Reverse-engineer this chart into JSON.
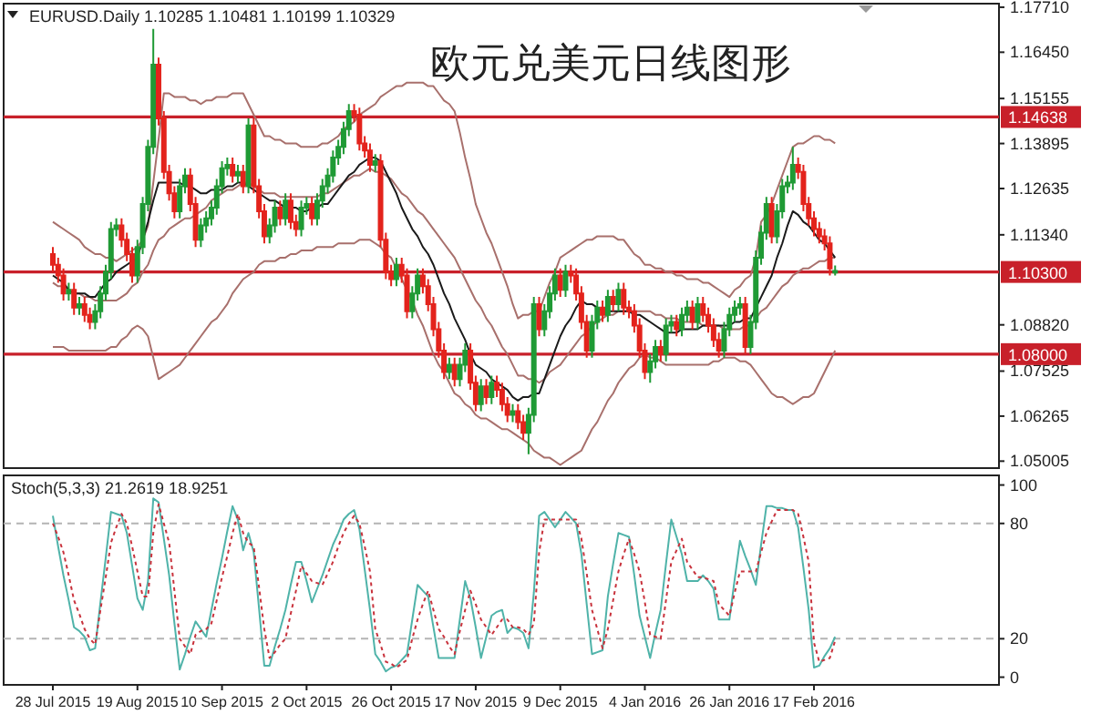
{
  "chart_data": [
    {
      "type": "candlestick",
      "title": "欧元兑美元日线图形",
      "annotations": [
        "EURUSD.Daily 1.10285 1.10481 1.10199 1.10329"
      ],
      "tick_labels": "y",
      "ylim": [
        1.0481,
        1.1781
      ],
      "categories": [
        null,
        null,
        null,
        null,
        null,
        null,
        null,
        null,
        null,
        null,
        null,
        null,
        null,
        null,
        null,
        null,
        null,
        null,
        null,
        null,
        null,
        null,
        null,
        null,
        null,
        null,
        null,
        null,
        null,
        null,
        null,
        null,
        null,
        null,
        null,
        null,
        null,
        null,
        null,
        null,
        null,
        null,
        null,
        null,
        null,
        null,
        null,
        null,
        null,
        null,
        null,
        null,
        null,
        null,
        null,
        null,
        null,
        null,
        null,
        null,
        null,
        null,
        null,
        null,
        null,
        null,
        null,
        null,
        null,
        null,
        null,
        null,
        null,
        null,
        null,
        null,
        null,
        null,
        null,
        null,
        null,
        null,
        null,
        null,
        null,
        null,
        null,
        null,
        null,
        null,
        null,
        null,
        null,
        null,
        null,
        null,
        null,
        null,
        null,
        null,
        null,
        null,
        null,
        null,
        null,
        null,
        null,
        null,
        null,
        null,
        null,
        null,
        null,
        null,
        null,
        null,
        null,
        null,
        null,
        null,
        null,
        null,
        null,
        null,
        null,
        null,
        null,
        null,
        null,
        null,
        null,
        null,
        null,
        null,
        null,
        null,
        null,
        null,
        null,
        null,
        null,
        null,
        null,
        null,
        null,
        null,
        null,
        null,
        null
      ],
      "yticks": [
        {
          "value": 1.1771,
          "label": "1.17710"
        },
        {
          "value": 1.1645,
          "label": "1.16450"
        },
        {
          "value": 1.15155,
          "label": "1.15155"
        },
        {
          "value": 1.13895,
          "label": "1.13895"
        },
        {
          "value": 1.12635,
          "label": "1.12635"
        },
        {
          "value": 1.1134,
          "label": "1.11340"
        },
        {
          "value": 1.0882,
          "label": "1.08820"
        },
        {
          "value": 1.07525,
          "label": "1.07525"
        },
        {
          "value": 1.06265,
          "label": "1.06265"
        },
        {
          "value": 1.05005,
          "label": "1.05005"
        }
      ],
      "ref_lines": [
        {
          "axis": "y",
          "value": 1.14638,
          "label": "1.14638",
          "color": "#c8202a"
        },
        {
          "axis": "y",
          "value": 1.103,
          "label": "1.10300",
          "color": "#c8202a"
        },
        {
          "axis": "y",
          "value": 1.08,
          "label": "1.08000",
          "color": "#c8202a"
        }
      ],
      "ohlc": [
        [
          1.108,
          1.11,
          1.103,
          1.105
        ],
        [
          1.105,
          1.107,
          1.1,
          1.102
        ],
        [
          1.102,
          1.104,
          1.095,
          1.097
        ],
        [
          1.097,
          1.1,
          1.095,
          1.098
        ],
        [
          1.098,
          1.1,
          1.091,
          1.093
        ],
        [
          1.093,
          1.096,
          1.091,
          1.094
        ],
        [
          1.094,
          1.096,
          1.089,
          1.091
        ],
        [
          1.091,
          1.093,
          1.087,
          1.089
        ],
        [
          1.089,
          1.094,
          1.087,
          1.092
        ],
        [
          1.092,
          1.099,
          1.09,
          1.097
        ],
        [
          1.097,
          1.105,
          1.095,
          1.103
        ],
        [
          1.103,
          1.117,
          1.101,
          1.115
        ],
        [
          1.115,
          1.118,
          1.113,
          1.116
        ],
        [
          1.116,
          1.118,
          1.11,
          1.112
        ],
        [
          1.112,
          1.114,
          1.106,
          1.108
        ],
        [
          1.108,
          1.11,
          1.1,
          1.102
        ],
        [
          1.102,
          1.112,
          1.1,
          1.11
        ],
        [
          1.11,
          1.124,
          1.108,
          1.122
        ],
        [
          1.122,
          1.14,
          1.12,
          1.138
        ],
        [
          1.138,
          1.171,
          1.136,
          1.161
        ],
        [
          1.161,
          1.163,
          1.144,
          1.146
        ],
        [
          1.146,
          1.148,
          1.129,
          1.131
        ],
        [
          1.131,
          1.133,
          1.123,
          1.125
        ],
        [
          1.125,
          1.127,
          1.118,
          1.12
        ],
        [
          1.12,
          1.129,
          1.118,
          1.127
        ],
        [
          1.127,
          1.132,
          1.125,
          1.13
        ],
        [
          1.13,
          1.132,
          1.12,
          1.122
        ],
        [
          1.122,
          1.124,
          1.11,
          1.112
        ],
        [
          1.112,
          1.118,
          1.11,
          1.116
        ],
        [
          1.116,
          1.12,
          1.114,
          1.118
        ],
        [
          1.118,
          1.123,
          1.116,
          1.121
        ],
        [
          1.121,
          1.129,
          1.119,
          1.127
        ],
        [
          1.127,
          1.134,
          1.125,
          1.132
        ],
        [
          1.132,
          1.135,
          1.13,
          1.133
        ],
        [
          1.133,
          1.135,
          1.128,
          1.13
        ],
        [
          1.13,
          1.133,
          1.128,
          1.131
        ],
        [
          1.131,
          1.133,
          1.125,
          1.127
        ],
        [
          1.127,
          1.146,
          1.125,
          1.144
        ],
        [
          1.144,
          1.146,
          1.125,
          1.127
        ],
        [
          1.127,
          1.129,
          1.118,
          1.12
        ],
        [
          1.12,
          1.122,
          1.111,
          1.113
        ],
        [
          1.113,
          1.118,
          1.111,
          1.116
        ],
        [
          1.116,
          1.123,
          1.114,
          1.121
        ],
        [
          1.121,
          1.123,
          1.116,
          1.118
        ],
        [
          1.118,
          1.125,
          1.116,
          1.123
        ],
        [
          1.123,
          1.125,
          1.115,
          1.117
        ],
        [
          1.117,
          1.119,
          1.113,
          1.115
        ],
        [
          1.115,
          1.123,
          1.113,
          1.121
        ],
        [
          1.121,
          1.124,
          1.119,
          1.122
        ],
        [
          1.122,
          1.124,
          1.116,
          1.118
        ],
        [
          1.118,
          1.125,
          1.116,
          1.123
        ],
        [
          1.123,
          1.129,
          1.121,
          1.127
        ],
        [
          1.127,
          1.132,
          1.125,
          1.13
        ],
        [
          1.13,
          1.137,
          1.128,
          1.135
        ],
        [
          1.135,
          1.14,
          1.133,
          1.138
        ],
        [
          1.138,
          1.145,
          1.136,
          1.143
        ],
        [
          1.143,
          1.15,
          1.141,
          1.148
        ],
        [
          1.148,
          1.15,
          1.145,
          1.147
        ],
        [
          1.147,
          1.149,
          1.137,
          1.139
        ],
        [
          1.139,
          1.141,
          1.135,
          1.137
        ],
        [
          1.137,
          1.139,
          1.131,
          1.133
        ],
        [
          1.133,
          1.136,
          1.131,
          1.134
        ],
        [
          1.134,
          1.136,
          1.11,
          1.112
        ],
        [
          1.112,
          1.114,
          1.101,
          1.103
        ],
        [
          1.103,
          1.105,
          1.099,
          1.101
        ],
        [
          1.101,
          1.107,
          1.099,
          1.105
        ],
        [
          1.105,
          1.107,
          1.1,
          1.102
        ],
        [
          1.102,
          1.104,
          1.09,
          1.092
        ],
        [
          1.092,
          1.099,
          1.09,
          1.097
        ],
        [
          1.097,
          1.104,
          1.095,
          1.102
        ],
        [
          1.102,
          1.104,
          1.097,
          1.099
        ],
        [
          1.099,
          1.101,
          1.092,
          1.094
        ],
        [
          1.094,
          1.096,
          1.085,
          1.087
        ],
        [
          1.087,
          1.089,
          1.079,
          1.081
        ],
        [
          1.081,
          1.083,
          1.073,
          1.075
        ],
        [
          1.075,
          1.079,
          1.073,
          1.077
        ],
        [
          1.077,
          1.079,
          1.071,
          1.073
        ],
        [
          1.073,
          1.079,
          1.071,
          1.077
        ],
        [
          1.077,
          1.083,
          1.075,
          1.081
        ],
        [
          1.081,
          1.083,
          1.07,
          1.072
        ],
        [
          1.072,
          1.074,
          1.064,
          1.066
        ],
        [
          1.066,
          1.073,
          1.064,
          1.071
        ],
        [
          1.071,
          1.073,
          1.066,
          1.068
        ],
        [
          1.068,
          1.074,
          1.066,
          1.072
        ],
        [
          1.072,
          1.074,
          1.068,
          1.07
        ],
        [
          1.07,
          1.072,
          1.064,
          1.066
        ],
        [
          1.066,
          1.068,
          1.061,
          1.063
        ],
        [
          1.063,
          1.066,
          1.061,
          1.064
        ],
        [
          1.064,
          1.066,
          1.059,
          1.061
        ],
        [
          1.061,
          1.063,
          1.056,
          1.058
        ],
        [
          1.058,
          1.065,
          1.052,
          1.063
        ],
        [
          1.063,
          1.096,
          1.061,
          1.094
        ],
        [
          1.094,
          1.096,
          1.085,
          1.087
        ],
        [
          1.087,
          1.094,
          1.085,
          1.092
        ],
        [
          1.092,
          1.099,
          1.09,
          1.097
        ],
        [
          1.097,
          1.104,
          1.095,
          1.102
        ],
        [
          1.102,
          1.104,
          1.096,
          1.098
        ],
        [
          1.098,
          1.105,
          1.096,
          1.103
        ],
        [
          1.103,
          1.105,
          1.1,
          1.102
        ],
        [
          1.102,
          1.104,
          1.095,
          1.097
        ],
        [
          1.097,
          1.099,
          1.087,
          1.089
        ],
        [
          1.089,
          1.091,
          1.079,
          1.081
        ],
        [
          1.081,
          1.091,
          1.079,
          1.089
        ],
        [
          1.089,
          1.095,
          1.087,
          1.093
        ],
        [
          1.093,
          1.095,
          1.089,
          1.091
        ],
        [
          1.091,
          1.098,
          1.089,
          1.096
        ],
        [
          1.096,
          1.098,
          1.092,
          1.094
        ],
        [
          1.094,
          1.1,
          1.092,
          1.098
        ],
        [
          1.098,
          1.1,
          1.091,
          1.093
        ],
        [
          1.093,
          1.095,
          1.09,
          1.092
        ],
        [
          1.092,
          1.094,
          1.086,
          1.088
        ],
        [
          1.088,
          1.09,
          1.079,
          1.081
        ],
        [
          1.081,
          1.083,
          1.073,
          1.075
        ],
        [
          1.075,
          1.08,
          1.072,
          1.078
        ],
        [
          1.078,
          1.084,
          1.076,
          1.082
        ],
        [
          1.082,
          1.084,
          1.078,
          1.08
        ],
        [
          1.08,
          1.09,
          1.078,
          1.088
        ],
        [
          1.088,
          1.091,
          1.086,
          1.089
        ],
        [
          1.089,
          1.091,
          1.085,
          1.087
        ],
        [
          1.087,
          1.093,
          1.085,
          1.091
        ],
        [
          1.091,
          1.095,
          1.089,
          1.093
        ],
        [
          1.093,
          1.095,
          1.087,
          1.089
        ],
        [
          1.089,
          1.096,
          1.087,
          1.094
        ],
        [
          1.094,
          1.096,
          1.089,
          1.091
        ],
        [
          1.091,
          1.093,
          1.086,
          1.088
        ],
        [
          1.088,
          1.09,
          1.082,
          1.084
        ],
        [
          1.084,
          1.086,
          1.079,
          1.081
        ],
        [
          1.081,
          1.089,
          1.079,
          1.087
        ],
        [
          1.087,
          1.093,
          1.085,
          1.091
        ],
        [
          1.091,
          1.095,
          1.089,
          1.093
        ],
        [
          1.093,
          1.096,
          1.091,
          1.094
        ],
        [
          1.094,
          1.096,
          1.08,
          1.082
        ],
        [
          1.082,
          1.091,
          1.08,
          1.089
        ],
        [
          1.089,
          1.109,
          1.087,
          1.107
        ],
        [
          1.107,
          1.116,
          1.105,
          1.114
        ],
        [
          1.114,
          1.124,
          1.112,
          1.122
        ],
        [
          1.122,
          1.124,
          1.111,
          1.113
        ],
        [
          1.113,
          1.122,
          1.111,
          1.12
        ],
        [
          1.12,
          1.129,
          1.118,
          1.127
        ],
        [
          1.127,
          1.13,
          1.125,
          1.128
        ],
        [
          1.128,
          1.138,
          1.126,
          1.133
        ],
        [
          1.133,
          1.135,
          1.129,
          1.131
        ],
        [
          1.131,
          1.133,
          1.12,
          1.122
        ],
        [
          1.122,
          1.124,
          1.116,
          1.118
        ],
        [
          1.118,
          1.12,
          1.113,
          1.115
        ],
        [
          1.115,
          1.117,
          1.111,
          1.113
        ],
        [
          1.113,
          1.115,
          1.109,
          1.111
        ],
        [
          1.111,
          1.113,
          1.102,
          1.104
        ],
        [
          1.10285,
          1.10481,
          1.10199,
          1.10329
        ]
      ],
      "series": [
        {
          "type": "line",
          "color": "#a8706c",
          "values": [
            1.117,
            1.116,
            1.115,
            1.114,
            1.113,
            1.112,
            1.11,
            1.109,
            1.108,
            1.108,
            1.107,
            1.107,
            1.106,
            1.107,
            1.108,
            1.109,
            1.11,
            1.112,
            1.116,
            1.128,
            1.14,
            1.153,
            1.153,
            1.152,
            1.152,
            1.152,
            1.151,
            1.151,
            1.15,
            1.151,
            1.151,
            1.152,
            1.152,
            1.152,
            1.153,
            1.153,
            1.153,
            1.15,
            1.147,
            1.144,
            1.141,
            1.141,
            1.14,
            1.14,
            1.139,
            1.139,
            1.139,
            1.138,
            1.138,
            1.138,
            1.138,
            1.139,
            1.139,
            1.14,
            1.141,
            1.143,
            1.144,
            1.145,
            1.147,
            1.148,
            1.149,
            1.15,
            1.152,
            1.153,
            1.154,
            1.155,
            1.155,
            1.156,
            1.156,
            1.156,
            1.156,
            1.155,
            1.155,
            1.153,
            1.151,
            1.15,
            1.148,
            1.142,
            1.135,
            1.129,
            1.122,
            1.118,
            1.114,
            1.111,
            1.107,
            1.103,
            1.099,
            1.094,
            1.09,
            1.091,
            1.091,
            1.092,
            1.092,
            1.096,
            1.1,
            1.103,
            1.107,
            1.108,
            1.109,
            1.11,
            1.111,
            1.112,
            1.112,
            1.113,
            1.113,
            1.113,
            1.113,
            1.112,
            1.112,
            1.11,
            1.108,
            1.107,
            1.105,
            1.105,
            1.104,
            1.104,
            1.103,
            1.103,
            1.102,
            1.102,
            1.101,
            1.101,
            1.101,
            1.1,
            1.1,
            1.099,
            1.098,
            1.097,
            1.096,
            1.098,
            1.099,
            1.101,
            1.102,
            1.107,
            1.117,
            1.119,
            1.122,
            1.126,
            1.13,
            1.134,
            1.138,
            1.139,
            1.139,
            1.14,
            1.141,
            1.141,
            1.14,
            1.14,
            1.139
          ]
        },
        {
          "type": "line",
          "color": "#a8706c",
          "values": [
            1.1,
            1.099,
            1.099,
            1.098,
            1.097,
            1.097,
            1.096,
            1.096,
            1.095,
            1.095,
            1.095,
            1.095,
            1.095,
            1.096,
            1.097,
            1.099,
            1.1,
            1.103,
            1.105,
            1.109,
            1.112,
            1.113,
            1.115,
            1.116,
            1.117,
            1.118,
            1.118,
            1.119,
            1.12,
            1.121,
            1.123,
            1.124,
            1.125,
            1.126,
            1.126,
            1.127,
            1.128,
            1.128,
            1.127,
            1.126,
            1.125,
            1.125,
            1.125,
            1.124,
            1.124,
            1.124,
            1.124,
            1.124,
            1.124,
            1.124,
            1.124,
            1.125,
            1.125,
            1.126,
            1.127,
            1.128,
            1.129,
            1.13,
            1.13,
            1.131,
            1.132,
            1.131,
            1.131,
            1.13,
            1.129,
            1.127,
            1.125,
            1.124,
            1.122,
            1.12,
            1.119,
            1.117,
            1.115,
            1.113,
            1.111,
            1.109,
            1.107,
            1.104,
            1.101,
            1.098,
            1.095,
            1.093,
            1.09,
            1.088,
            1.085,
            1.082,
            1.08,
            1.077,
            1.074,
            1.074,
            1.073,
            1.073,
            1.072,
            1.073,
            1.075,
            1.076,
            1.077,
            1.079,
            1.081,
            1.083,
            1.085,
            1.086,
            1.088,
            1.089,
            1.09,
            1.091,
            1.091,
            1.092,
            1.092,
            1.092,
            1.092,
            1.092,
            1.092,
            1.092,
            1.091,
            1.091,
            1.09,
            1.09,
            1.09,
            1.089,
            1.089,
            1.089,
            1.089,
            1.088,
            1.088,
            1.088,
            1.088,
            1.087,
            1.087,
            1.087,
            1.087,
            1.088,
            1.088,
            1.09,
            1.092,
            1.093,
            1.095,
            1.097,
            1.099,
            1.1,
            1.102,
            1.103,
            1.104,
            1.104,
            1.105,
            1.106,
            1.106,
            1.107,
            1.107
          ]
        },
        {
          "type": "line",
          "color": "#a8706c",
          "values": [
            1.082,
            1.082,
            1.082,
            1.081,
            1.081,
            1.081,
            1.081,
            1.081,
            1.081,
            1.081,
            1.081,
            1.082,
            1.082,
            1.084,
            1.085,
            1.087,
            1.088,
            1.087,
            1.085,
            1.079,
            1.073,
            1.074,
            1.075,
            1.076,
            1.077,
            1.079,
            1.081,
            1.083,
            1.085,
            1.087,
            1.089,
            1.09,
            1.092,
            1.094,
            1.097,
            1.099,
            1.101,
            1.102,
            1.103,
            1.105,
            1.106,
            1.106,
            1.106,
            1.107,
            1.107,
            1.108,
            1.108,
            1.109,
            1.109,
            1.109,
            1.11,
            1.11,
            1.11,
            1.11,
            1.111,
            1.111,
            1.111,
            1.111,
            1.112,
            1.112,
            1.112,
            1.111,
            1.11,
            1.108,
            1.107,
            1.104,
            1.101,
            1.098,
            1.095,
            1.091,
            1.088,
            1.084,
            1.08,
            1.077,
            1.075,
            1.072,
            1.069,
            1.068,
            1.066,
            1.065,
            1.063,
            1.062,
            1.062,
            1.061,
            1.06,
            1.059,
            1.059,
            1.058,
            1.057,
            1.056,
            1.055,
            1.053,
            1.052,
            1.051,
            1.051,
            1.05,
            1.049,
            1.05,
            1.051,
            1.052,
            1.053,
            1.056,
            1.059,
            1.061,
            1.064,
            1.067,
            1.069,
            1.072,
            1.074,
            1.076,
            1.077,
            1.079,
            1.08,
            1.079,
            1.079,
            1.078,
            1.077,
            1.077,
            1.077,
            1.077,
            1.077,
            1.077,
            1.077,
            1.077,
            1.077,
            1.078,
            1.078,
            1.079,
            1.079,
            1.079,
            1.078,
            1.078,
            1.077,
            1.075,
            1.073,
            1.071,
            1.069,
            1.068,
            1.068,
            1.067,
            1.066,
            1.067,
            1.068,
            1.068,
            1.069,
            1.072,
            1.075,
            1.078,
            1.081
          ]
        },
        {
          "type": "line",
          "color": "#1a1a1a",
          "values": [
            1.102,
            1.101,
            1.1,
            1.098,
            1.097,
            1.097,
            1.097,
            1.096,
            1.096,
            1.098,
            1.1,
            1.101,
            1.103,
            1.104,
            1.105,
            1.106,
            1.107,
            1.112,
            1.117,
            1.123,
            1.128,
            1.128,
            1.128,
            1.128,
            1.128,
            1.127,
            1.127,
            1.126,
            1.125,
            1.125,
            1.126,
            1.126,
            1.126,
            1.127,
            1.127,
            1.128,
            1.128,
            1.127,
            1.126,
            1.125,
            1.124,
            1.123,
            1.123,
            1.122,
            1.121,
            1.121,
            1.121,
            1.12,
            1.12,
            1.121,
            1.121,
            1.122,
            1.122,
            1.124,
            1.126,
            1.128,
            1.13,
            1.131,
            1.133,
            1.134,
            1.135,
            1.135,
            1.134,
            1.131,
            1.128,
            1.125,
            1.121,
            1.118,
            1.115,
            1.113,
            1.11,
            1.108,
            1.105,
            1.101,
            1.097,
            1.094,
            1.09,
            1.087,
            1.084,
            1.08,
            1.077,
            1.076,
            1.075,
            1.073,
            1.072,
            1.071,
            1.07,
            1.068,
            1.067,
            1.068,
            1.068,
            1.069,
            1.069,
            1.073,
            1.077,
            1.081,
            1.085,
            1.088,
            1.09,
            1.093,
            1.095,
            1.094,
            1.094,
            1.093,
            1.092,
            1.092,
            1.092,
            1.092,
            1.092,
            1.092,
            1.091,
            1.091,
            1.09,
            1.089,
            1.088,
            1.087,
            1.086,
            1.086,
            1.086,
            1.087,
            1.087,
            1.087,
            1.087,
            1.088,
            1.088,
            1.088,
            1.088,
            1.088,
            1.088,
            1.089,
            1.089,
            1.09,
            1.09,
            1.093,
            1.096,
            1.099,
            1.102,
            1.107,
            1.111,
            1.116,
            1.12,
            1.119,
            1.117,
            1.116,
            1.114,
            1.112,
            1.111,
            1.109,
            1.107
          ]
        }
      ]
    },
    {
      "type": "line",
      "annotations": [
        "Stoch(5,3,3) 21.2619 18.9251"
      ],
      "ylim": [
        -4,
        105
      ],
      "categories": [
        "28 Jul 2015",
        null,
        null,
        null,
        null,
        null,
        null,
        null,
        null,
        null,
        null,
        null,
        null,
        null,
        null,
        null,
        "19 Aug 2015",
        null,
        null,
        null,
        null,
        null,
        null,
        null,
        null,
        null,
        null,
        null,
        null,
        null,
        null,
        null,
        "10 Sep 2015",
        null,
        null,
        null,
        null,
        null,
        null,
        null,
        null,
        null,
        null,
        null,
        null,
        null,
        null,
        null,
        "2 Oct 2015",
        null,
        null,
        null,
        null,
        null,
        null,
        null,
        null,
        null,
        null,
        null,
        null,
        null,
        null,
        null,
        "26 Oct 2015",
        null,
        null,
        null,
        null,
        null,
        null,
        null,
        null,
        null,
        null,
        null,
        null,
        null,
        null,
        null,
        "17 Nov 2015",
        null,
        null,
        null,
        null,
        null,
        null,
        null,
        null,
        null,
        null,
        null,
        null,
        null,
        null,
        null,
        "9 Dec 2015",
        null,
        null,
        null,
        null,
        null,
        null,
        null,
        null,
        null,
        null,
        null,
        null,
        null,
        null,
        null,
        "4 Jan 2016",
        null,
        null,
        null,
        null,
        null,
        null,
        null,
        null,
        null,
        null,
        null,
        null,
        null,
        null,
        null,
        "26 Jan 2016",
        null,
        null,
        null,
        null,
        null,
        null,
        null,
        null,
        null,
        null,
        null,
        null,
        null,
        null,
        null,
        "17 Feb 2016",
        null,
        null,
        null,
        null
      ],
      "yticks": [
        0,
        20,
        80,
        100
      ],
      "ref_lines": [
        {
          "axis": "y",
          "value": 20,
          "color": "#b4b4b4",
          "line_style": "dashed"
        },
        {
          "axis": "y",
          "value": 80,
          "color": "#b4b4b4",
          "line_style": "dashed"
        }
      ],
      "series": [
        {
          "color": "#4fb3a9",
          "values": [
            84,
            68,
            53,
            40,
            26,
            24,
            21,
            14,
            15,
            39,
            62,
            86,
            85,
            84,
            75,
            58,
            41,
            35,
            50,
            93,
            91,
            72,
            53,
            28,
            4,
            12,
            21,
            29,
            25,
            21,
            35,
            49,
            62,
            76,
            89,
            82,
            66,
            75,
            65,
            36,
            6,
            6,
            16,
            25,
            35,
            48,
            60,
            60,
            50,
            39,
            46,
            53,
            61,
            69,
            75,
            82,
            85,
            87,
            77,
            56,
            35,
            12,
            8,
            3,
            5,
            6,
            9,
            12,
            30,
            48,
            45,
            42,
            26,
            10,
            10,
            10,
            10,
            30,
            50,
            41,
            26,
            10,
            21,
            32,
            34,
            35,
            23,
            26,
            25,
            23,
            15,
            44,
            84,
            86,
            82,
            78,
            82,
            86,
            83,
            80,
            64,
            38,
            12,
            13,
            14,
            42,
            59,
            75,
            74,
            73,
            53,
            32,
            21,
            10,
            23,
            35,
            59,
            82,
            73,
            64,
            50,
            50,
            50,
            53,
            50,
            46,
            30,
            30,
            30,
            51,
            71,
            63,
            56,
            48,
            69,
            89,
            89,
            88,
            88,
            87,
            87,
            78,
            57,
            35,
            5,
            6,
            11,
            15,
            21
          ]
        },
        {
          "color": "#c8323c",
          "line_style": "dotted",
          "values": [
            80,
            73,
            65,
            53,
            40,
            33,
            25,
            20,
            17,
            35,
            52,
            70,
            78,
            85,
            80,
            68,
            55,
            42,
            42,
            75,
            90,
            80,
            70,
            45,
            20,
            16,
            12,
            22,
            24,
            25,
            28,
            40,
            52,
            63,
            75,
            85,
            75,
            70,
            68,
            47,
            25,
            10,
            13,
            17,
            20,
            33,
            45,
            58,
            54,
            50,
            49,
            48,
            54,
            60,
            68,
            75,
            80,
            84,
            80,
            68,
            55,
            25,
            17,
            8,
            7,
            5,
            7,
            9,
            20,
            30,
            38,
            45,
            35,
            25,
            21,
            16,
            12,
            24,
            35,
            45,
            38,
            30,
            26,
            22,
            26,
            30,
            30,
            26,
            26,
            25,
            22,
            28,
            65,
            82,
            82,
            82,
            82,
            82,
            82,
            82,
            72,
            54,
            35,
            25,
            15,
            25,
            40,
            55,
            64,
            72,
            64,
            55,
            39,
            22,
            21,
            20,
            40,
            60,
            66,
            72,
            60,
            56,
            52,
            52,
            51,
            50,
            38,
            35,
            32,
            44,
            55,
            55,
            55,
            55,
            65,
            75,
            81,
            87,
            87,
            87,
            87,
            85,
            73,
            60,
            18,
            8,
            9,
            10,
            19
          ]
        }
      ]
    }
  ]
}
